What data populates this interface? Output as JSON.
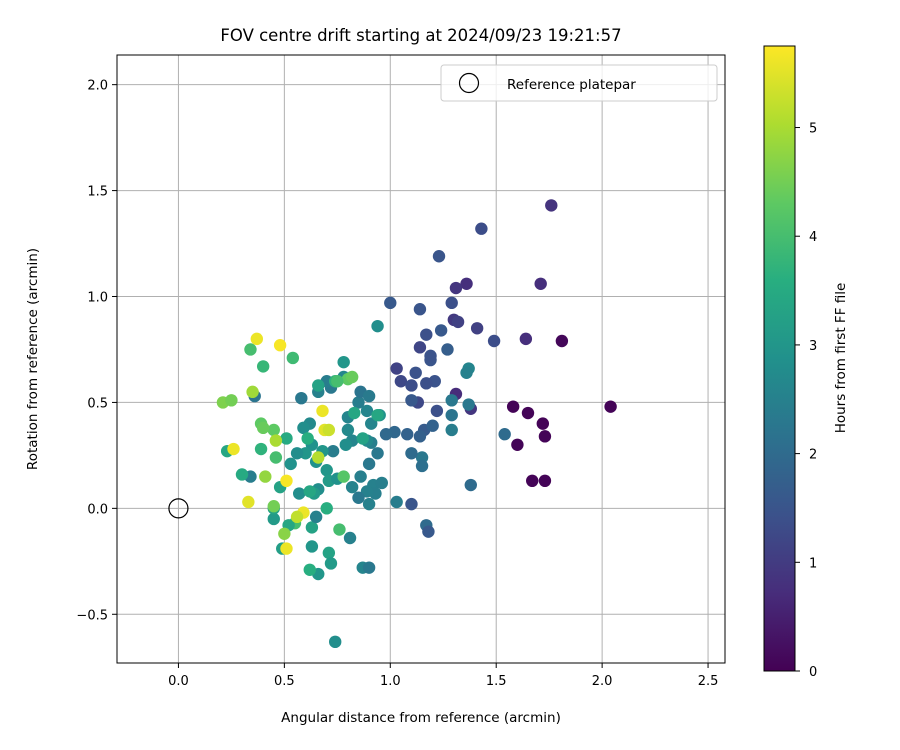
{
  "chart_data": {
    "type": "scatter",
    "title": "FOV centre drift starting at 2024/09/23 19:21:57",
    "xlabel": "Angular distance from reference (arcmin)",
    "ylabel": "Rotation from reference (arcmin)",
    "xlim": [
      -0.29,
      2.58
    ],
    "ylim": [
      -0.73,
      2.14
    ],
    "xticks": [
      0.0,
      0.5,
      1.0,
      1.5,
      2.0,
      2.5
    ],
    "xtick_labels": [
      "0.0",
      "0.5",
      "1.0",
      "1.5",
      "2.0",
      "2.5"
    ],
    "yticks": [
      -0.5,
      0.0,
      0.5,
      1.0,
      1.5,
      2.0
    ],
    "ytick_labels": [
      "−0.5",
      "0.0",
      "0.5",
      "1.0",
      "1.5",
      "2.0"
    ],
    "grid": true,
    "legend": {
      "position": "top-right",
      "entries": [
        "Reference platepar"
      ]
    },
    "reference_point": {
      "x": 0.0,
      "y": 0.0,
      "marker": "open-circle"
    },
    "colorbar": {
      "label": "Hours from first FF file",
      "range": [
        0,
        5.75
      ],
      "ticks": [
        0,
        1,
        2,
        3,
        4,
        5
      ],
      "tick_labels": [
        "0",
        "1",
        "2",
        "3",
        "4",
        "5"
      ],
      "colormap": "viridis"
    },
    "points": [
      [
        2.04,
        0.48,
        0.05
      ],
      [
        1.81,
        0.79,
        0.1
      ],
      [
        1.58,
        0.48,
        0.05
      ],
      [
        1.65,
        0.45,
        0.05
      ],
      [
        1.72,
        0.4,
        0.05
      ],
      [
        1.73,
        0.34,
        0.05
      ],
      [
        1.6,
        0.3,
        0.05
      ],
      [
        1.67,
        0.13,
        0.05
      ],
      [
        1.73,
        0.13,
        0.05
      ],
      [
        1.76,
        1.43,
        0.85
      ],
      [
        1.71,
        1.06,
        0.75
      ],
      [
        1.64,
        0.8,
        0.75
      ],
      [
        1.36,
        1.06,
        0.75
      ],
      [
        1.31,
        1.04,
        0.9
      ],
      [
        1.3,
        0.89,
        0.95
      ],
      [
        1.31,
        0.54,
        0.7
      ],
      [
        1.38,
        0.47,
        0.9
      ],
      [
        1.41,
        0.85,
        1.1
      ],
      [
        1.32,
        0.88,
        1.1
      ],
      [
        1.43,
        1.32,
        1.35
      ],
      [
        1.49,
        0.79,
        1.35
      ],
      [
        1.23,
        1.19,
        1.5
      ],
      [
        1.29,
        0.97,
        1.4
      ],
      [
        1.0,
        0.97,
        1.6
      ],
      [
        1.14,
        0.94,
        1.5
      ],
      [
        1.17,
        0.82,
        1.4
      ],
      [
        1.14,
        0.76,
        1.2
      ],
      [
        1.19,
        0.7,
        1.5
      ],
      [
        1.21,
        0.6,
        1.45
      ],
      [
        1.17,
        0.59,
        1.4
      ],
      [
        1.12,
        0.64,
        1.45
      ],
      [
        1.05,
        0.6,
        1.25
      ],
      [
        1.03,
        0.66,
        1.15
      ],
      [
        1.1,
        0.58,
        1.35
      ],
      [
        1.13,
        0.5,
        1.25
      ],
      [
        1.22,
        0.46,
        1.4
      ],
      [
        1.27,
        0.75,
        1.7
      ],
      [
        1.24,
        0.84,
        1.6
      ],
      [
        1.19,
        0.72,
        1.45
      ],
      [
        1.1,
        0.51,
        1.6
      ],
      [
        1.16,
        0.37,
        1.65
      ],
      [
        1.2,
        0.39,
        1.8
      ],
      [
        1.14,
        0.34,
        1.75
      ],
      [
        1.08,
        0.35,
        1.8
      ],
      [
        1.02,
        0.36,
        1.9
      ],
      [
        0.98,
        0.35,
        1.95
      ],
      [
        1.15,
        0.24,
        2.3
      ],
      [
        1.15,
        0.2,
        2.1
      ],
      [
        1.1,
        0.26,
        2.0
      ],
      [
        1.17,
        -0.08,
        2.0
      ],
      [
        1.18,
        -0.11,
        1.6
      ],
      [
        1.1,
        0.02,
        1.5
      ],
      [
        1.03,
        0.03,
        2.4
      ],
      [
        1.38,
        0.11,
        2.0
      ],
      [
        1.54,
        0.35,
        2.0
      ],
      [
        1.37,
        0.66,
        2.6
      ],
      [
        1.36,
        0.64,
        2.5
      ],
      [
        1.37,
        0.49,
        2.3
      ],
      [
        1.29,
        0.44,
        2.2
      ],
      [
        1.29,
        0.51,
        2.3
      ],
      [
        1.29,
        0.37,
        2.4
      ],
      [
        0.94,
        0.86,
        2.8
      ],
      [
        0.92,
        0.11,
        2.5
      ],
      [
        0.96,
        0.12,
        2.45
      ],
      [
        0.93,
        0.07,
        2.45
      ],
      [
        0.9,
        0.02,
        2.5
      ],
      [
        0.89,
        0.08,
        2.5
      ],
      [
        0.85,
        0.05,
        2.3
      ],
      [
        0.82,
        0.1,
        2.55
      ],
      [
        0.86,
        0.15,
        2.45
      ],
      [
        0.9,
        0.21,
        2.3
      ],
      [
        0.94,
        0.26,
        2.3
      ],
      [
        0.91,
        0.31,
        2.45
      ],
      [
        0.89,
        0.32,
        2.7
      ],
      [
        0.91,
        0.4,
        2.6
      ],
      [
        0.95,
        0.44,
        2.9
      ],
      [
        0.89,
        0.46,
        2.6
      ],
      [
        0.85,
        0.5,
        2.4
      ],
      [
        0.86,
        0.55,
        2.2
      ],
      [
        0.9,
        0.53,
        2.35
      ],
      [
        0.8,
        0.43,
        2.6
      ],
      [
        0.8,
        0.37,
        2.7
      ],
      [
        0.82,
        0.32,
        2.6
      ],
      [
        0.79,
        0.3,
        2.8
      ],
      [
        0.73,
        0.27,
        2.4
      ],
      [
        0.72,
        0.57,
        2.3
      ],
      [
        0.7,
        0.6,
        2.4
      ],
      [
        0.66,
        0.55,
        2.5
      ],
      [
        0.78,
        0.69,
        3.0
      ],
      [
        0.78,
        0.62,
        2.6
      ],
      [
        0.62,
        0.4,
        2.7
      ],
      [
        0.59,
        0.38,
        2.8
      ],
      [
        0.58,
        0.52,
        2.3
      ],
      [
        0.63,
        0.3,
        2.9
      ],
      [
        0.6,
        0.26,
        3.0
      ],
      [
        0.65,
        0.22,
        2.9
      ],
      [
        0.68,
        0.27,
        3.0
      ],
      [
        0.7,
        0.18,
        3.0
      ],
      [
        0.71,
        0.13,
        3.1
      ],
      [
        0.75,
        0.14,
        2.9
      ],
      [
        0.66,
        0.09,
        2.8
      ],
      [
        0.64,
        0.07,
        3.1
      ],
      [
        0.57,
        0.07,
        2.8
      ],
      [
        0.53,
        0.21,
        2.9
      ],
      [
        0.56,
        0.26,
        2.8
      ],
      [
        0.34,
        0.15,
        2.4
      ],
      [
        0.36,
        0.53,
        2.2
      ],
      [
        0.74,
        -0.63,
        2.8
      ],
      [
        0.87,
        -0.28,
        2.6
      ],
      [
        0.9,
        -0.28,
        2.3
      ],
      [
        0.81,
        -0.14,
        2.5
      ],
      [
        0.71,
        -0.21,
        3.3
      ],
      [
        0.72,
        -0.26,
        3.1
      ],
      [
        0.66,
        -0.31,
        3.0
      ],
      [
        0.62,
        -0.29,
        3.6
      ],
      [
        0.63,
        -0.18,
        3.0
      ],
      [
        0.63,
        -0.09,
        3.3
      ],
      [
        0.65,
        -0.04,
        2.5
      ],
      [
        0.55,
        -0.07,
        4.0
      ],
      [
        0.49,
        -0.19,
        3.2
      ],
      [
        0.45,
        -0.05,
        3.1
      ],
      [
        0.45,
        0.0,
        3.3
      ],
      [
        0.52,
        -0.08,
        3.4
      ],
      [
        0.48,
        0.1,
        3.3
      ],
      [
        0.51,
        0.33,
        3.5
      ],
      [
        0.61,
        0.33,
        3.6
      ],
      [
        0.62,
        0.08,
        3.4
      ],
      [
        0.7,
        0.0,
        3.6
      ],
      [
        0.76,
        -0.1,
        4.0
      ],
      [
        0.74,
        0.6,
        3.7
      ],
      [
        0.8,
        0.61,
        4.3
      ],
      [
        0.83,
        0.45,
        3.4
      ],
      [
        0.87,
        0.33,
        3.3
      ],
      [
        0.94,
        0.44,
        3.4
      ],
      [
        0.66,
        0.58,
        3.3
      ],
      [
        0.54,
        0.71,
        3.9
      ],
      [
        0.4,
        0.67,
        3.8
      ],
      [
        0.34,
        0.75,
        4.0
      ],
      [
        0.3,
        0.16,
        3.5
      ],
      [
        0.23,
        0.27,
        3.4
      ],
      [
        0.39,
        0.28,
        3.7
      ],
      [
        0.46,
        0.24,
        4.0
      ],
      [
        0.45,
        0.37,
        4.3
      ],
      [
        0.39,
        0.4,
        4.3
      ],
      [
        0.4,
        0.38,
        4.4
      ],
      [
        0.21,
        0.5,
        4.6
      ],
      [
        0.25,
        0.51,
        4.5
      ],
      [
        0.35,
        0.55,
        4.9
      ],
      [
        0.37,
        0.8,
        5.6
      ],
      [
        0.48,
        0.77,
        5.7
      ],
      [
        0.26,
        0.28,
        5.6
      ],
      [
        0.33,
        0.03,
        5.5
      ],
      [
        0.41,
        0.15,
        4.8
      ],
      [
        0.46,
        0.32,
        5.0
      ],
      [
        0.51,
        0.13,
        5.7
      ],
      [
        0.51,
        -0.19,
        5.6
      ],
      [
        0.59,
        -0.02,
        5.6
      ],
      [
        0.56,
        -0.04,
        5.2
      ],
      [
        0.5,
        -0.12,
        4.7
      ],
      [
        0.68,
        0.46,
        5.6
      ],
      [
        0.66,
        0.24,
        5.1
      ],
      [
        0.69,
        0.37,
        5.5
      ],
      [
        0.71,
        0.37,
        5.3
      ],
      [
        0.78,
        0.15,
        4.2
      ],
      [
        0.75,
        0.6,
        4.0
      ],
      [
        0.82,
        0.62,
        4.4
      ],
      [
        0.45,
        0.01,
        4.5
      ]
    ]
  }
}
